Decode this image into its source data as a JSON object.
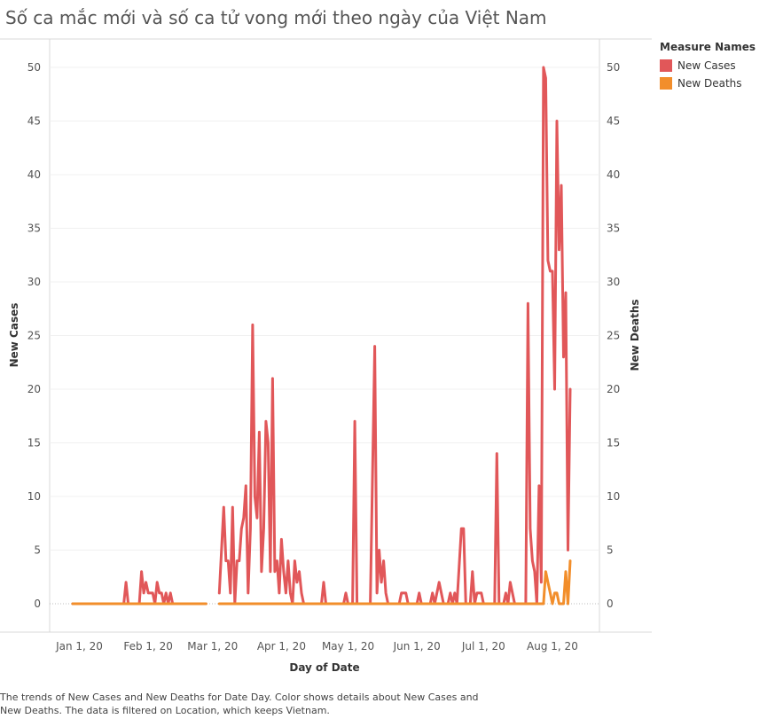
{
  "title": "Số ca mắc mới và số ca tử vong mới theo ngày của Việt Nam",
  "caption": "The trends of New Cases and New Deaths for Date Day.  Color shows details about New Cases and New Deaths. The data is filtered on Location, which keeps Vietnam.",
  "legend": {
    "title": "Measure Names",
    "items": [
      {
        "label": "New Cases",
        "color": "#e15759"
      },
      {
        "label": "New Deaths",
        "color": "#f28e2b"
      }
    ]
  },
  "chart_data": {
    "type": "line",
    "title": "Số ca mắc mới và số ca tử vong mới theo ngày của Việt Nam",
    "xlabel": "Day of Date",
    "ylabel": "New Cases",
    "y2label": "New Deaths",
    "ylim": [
      0,
      53
    ],
    "y_ticks": [
      0,
      5,
      10,
      15,
      20,
      25,
      30,
      35,
      40,
      45,
      50
    ],
    "x_range": [
      "2019-12-31",
      "2020-08-13"
    ],
    "x_ticks": [
      {
        "date": "2020-01-01",
        "label": "Jan 1, 20"
      },
      {
        "date": "2020-02-01",
        "label": "Feb 1, 20"
      },
      {
        "date": "2020-03-01",
        "label": "Mar 1, 20"
      },
      {
        "date": "2020-04-01",
        "label": "Apr 1, 20"
      },
      {
        "date": "2020-05-01",
        "label": "May 1, 20"
      },
      {
        "date": "2020-06-01",
        "label": "Jun 1, 20"
      },
      {
        "date": "2020-07-01",
        "label": "Jul 1, 20"
      },
      {
        "date": "2020-08-01",
        "label": "Aug 1, 20"
      }
    ],
    "grid": true,
    "legend_position": "top-right",
    "series": [
      {
        "name": "New Cases",
        "color": "#e15759",
        "segments": [
          [
            [
              "2019-12-31",
              0
            ],
            [
              "2020-01-23",
              0
            ],
            [
              "2020-01-24",
              2
            ],
            [
              "2020-01-25",
              0
            ],
            [
              "2020-01-30",
              0
            ],
            [
              "2020-01-31",
              3
            ],
            [
              "2020-02-01",
              1
            ],
            [
              "2020-02-02",
              2
            ],
            [
              "2020-02-03",
              1
            ],
            [
              "2020-02-05",
              1
            ],
            [
              "2020-02-06",
              0
            ],
            [
              "2020-02-07",
              2
            ],
            [
              "2020-02-08",
              1
            ],
            [
              "2020-02-09",
              1
            ],
            [
              "2020-02-10",
              0
            ],
            [
              "2020-02-11",
              1
            ],
            [
              "2020-02-12",
              0
            ],
            [
              "2020-02-13",
              1
            ],
            [
              "2020-02-14",
              0
            ],
            [
              "2020-02-29",
              0
            ]
          ],
          [
            [
              "2020-03-06",
              1
            ],
            [
              "2020-03-08",
              9
            ],
            [
              "2020-03-09",
              4
            ],
            [
              "2020-03-10",
              4
            ],
            [
              "2020-03-11",
              1
            ],
            [
              "2020-03-12",
              9
            ],
            [
              "2020-03-13",
              0
            ],
            [
              "2020-03-14",
              4
            ],
            [
              "2020-03-15",
              4
            ],
            [
              "2020-03-16",
              7
            ],
            [
              "2020-03-17",
              8
            ],
            [
              "2020-03-18",
              11
            ],
            [
              "2020-03-19",
              1
            ],
            [
              "2020-03-20",
              7
            ],
            [
              "2020-03-21",
              26
            ],
            [
              "2020-03-22",
              10
            ],
            [
              "2020-03-23",
              8
            ],
            [
              "2020-03-24",
              16
            ],
            [
              "2020-03-25",
              3
            ],
            [
              "2020-03-26",
              7
            ],
            [
              "2020-03-27",
              17
            ],
            [
              "2020-03-28",
              15
            ],
            [
              "2020-03-29",
              3
            ],
            [
              "2020-03-30",
              21
            ],
            [
              "2020-03-31",
              3
            ],
            [
              "2020-04-01",
              4
            ],
            [
              "2020-04-02",
              1
            ],
            [
              "2020-04-03",
              6
            ],
            [
              "2020-04-04",
              3
            ],
            [
              "2020-04-05",
              1
            ],
            [
              "2020-04-06",
              4
            ],
            [
              "2020-04-07",
              1
            ],
            [
              "2020-04-08",
              0
            ],
            [
              "2020-04-09",
              4
            ],
            [
              "2020-04-10",
              2
            ],
            [
              "2020-04-11",
              3
            ],
            [
              "2020-04-12",
              1
            ],
            [
              "2020-04-13",
              0
            ],
            [
              "2020-04-21",
              0
            ],
            [
              "2020-04-22",
              2
            ],
            [
              "2020-04-23",
              0
            ],
            [
              "2020-05-01",
              0
            ],
            [
              "2020-05-02",
              1
            ],
            [
              "2020-05-03",
              0
            ],
            [
              "2020-05-05",
              0
            ],
            [
              "2020-05-06",
              17
            ],
            [
              "2020-05-07",
              0
            ],
            [
              "2020-05-13",
              0
            ],
            [
              "2020-05-15",
              24
            ],
            [
              "2020-05-16",
              1
            ],
            [
              "2020-05-17",
              5
            ],
            [
              "2020-05-18",
              2
            ],
            [
              "2020-05-19",
              4
            ],
            [
              "2020-05-20",
              1
            ],
            [
              "2020-05-21",
              0
            ],
            [
              "2020-05-26",
              0
            ],
            [
              "2020-05-27",
              1
            ],
            [
              "2020-05-28",
              1
            ],
            [
              "2020-05-29",
              1
            ],
            [
              "2020-05-30",
              0
            ],
            [
              "2020-06-03",
              0
            ],
            [
              "2020-06-04",
              1
            ],
            [
              "2020-06-05",
              0
            ],
            [
              "2020-06-09",
              0
            ],
            [
              "2020-06-10",
              1
            ],
            [
              "2020-06-11",
              0
            ],
            [
              "2020-06-12",
              1
            ],
            [
              "2020-06-13",
              2
            ],
            [
              "2020-06-14",
              1
            ],
            [
              "2020-06-15",
              0
            ],
            [
              "2020-06-17",
              0
            ],
            [
              "2020-06-18",
              1
            ],
            [
              "2020-06-19",
              0
            ],
            [
              "2020-06-20",
              1
            ],
            [
              "2020-06-21",
              0
            ],
            [
              "2020-06-23",
              7
            ],
            [
              "2020-06-24",
              7
            ],
            [
              "2020-06-25",
              0
            ],
            [
              "2020-06-27",
              0
            ],
            [
              "2020-06-28",
              3
            ],
            [
              "2020-06-29",
              0
            ],
            [
              "2020-06-30",
              1
            ],
            [
              "2020-07-01",
              1
            ],
            [
              "2020-07-02",
              1
            ],
            [
              "2020-07-03",
              0
            ],
            [
              "2020-07-08",
              0
            ],
            [
              "2020-07-09",
              14
            ],
            [
              "2020-07-10",
              0
            ],
            [
              "2020-07-12",
              0
            ],
            [
              "2020-07-13",
              1
            ],
            [
              "2020-07-14",
              0
            ],
            [
              "2020-07-15",
              2
            ],
            [
              "2020-07-16",
              1
            ],
            [
              "2020-07-17",
              0
            ],
            [
              "2020-07-22",
              0
            ],
            [
              "2020-07-23",
              28
            ],
            [
              "2020-07-24",
              7
            ],
            [
              "2020-07-25",
              4
            ],
            [
              "2020-07-26",
              3
            ],
            [
              "2020-07-27",
              0
            ],
            [
              "2020-07-28",
              11
            ],
            [
              "2020-07-29",
              2
            ],
            [
              "2020-07-30",
              50
            ],
            [
              "2020-07-31",
              49
            ],
            [
              "2020-08-01",
              32
            ],
            [
              "2020-08-02",
              31
            ],
            [
              "2020-08-03",
              31
            ],
            [
              "2020-08-04",
              20
            ],
            [
              "2020-08-05",
              45
            ],
            [
              "2020-08-06",
              33
            ],
            [
              "2020-08-07",
              39
            ],
            [
              "2020-08-08",
              23
            ],
            [
              "2020-08-09",
              29
            ],
            [
              "2020-08-10",
              5
            ],
            [
              "2020-08-11",
              20
            ]
          ]
        ]
      },
      {
        "name": "New Deaths",
        "color": "#f28e2b",
        "segments": [
          [
            [
              "2019-12-31",
              0
            ],
            [
              "2020-02-29",
              0
            ]
          ],
          [
            [
              "2020-03-06",
              0
            ],
            [
              "2020-07-30",
              0
            ],
            [
              "2020-07-31",
              3
            ],
            [
              "2020-08-01",
              2
            ],
            [
              "2020-08-02",
              1
            ],
            [
              "2020-08-03",
              0
            ],
            [
              "2020-08-04",
              1
            ],
            [
              "2020-08-05",
              1
            ],
            [
              "2020-08-06",
              0
            ],
            [
              "2020-08-07",
              0
            ],
            [
              "2020-08-08",
              0
            ],
            [
              "2020-08-09",
              3
            ],
            [
              "2020-08-10",
              0
            ],
            [
              "2020-08-11",
              4
            ]
          ]
        ]
      }
    ]
  }
}
